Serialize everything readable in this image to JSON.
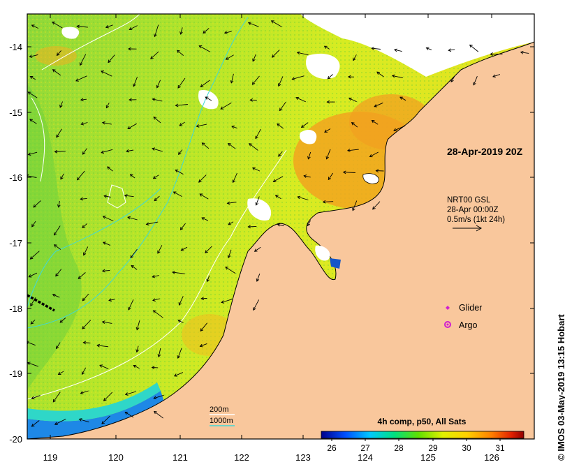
{
  "map": {
    "domain": {
      "lon": [
        118.6,
        126.7
      ],
      "lat": [
        -20.1,
        -13.6
      ]
    },
    "x_ticks": [
      "119",
      "120",
      "121",
      "122",
      "123",
      "124",
      "125",
      "126"
    ],
    "y_ticks": [
      "-14",
      "-15",
      "-16",
      "-17",
      "-18",
      "-19",
      "-20"
    ],
    "y_tick_values": [
      -14,
      -15,
      -16,
      -17,
      -18,
      -19,
      -20
    ],
    "x_tick_values": [
      119,
      120,
      121,
      122,
      123,
      124,
      125,
      126
    ],
    "colors": {
      "land": "#f9c79c",
      "sst_warm": "#f39a1e",
      "sst_mid": "#c8e824",
      "sst_cool": "#55d037",
      "contour_200m": "#ffffff",
      "contour_1000m": "#3fd8d8"
    }
  },
  "labels": {
    "timestamp": "28-Apr-2019 20Z",
    "current_product": "NRT00 GSL",
    "current_time": "28-Apr 00:00Z",
    "current_scale": "0.5m/s (1kt 24h)",
    "glider": "Glider",
    "argo": "Argo",
    "contour_200m": "200m",
    "contour_1000m": "1000m",
    "colorbar_title": "4h comp, p50, All Sats",
    "copyright": "© IMOS 03-May-2019 13:15 Hobart"
  },
  "colorbar": {
    "ticks": [
      "26",
      "27",
      "28",
      "29",
      "30",
      "31"
    ],
    "range": [
      25.6,
      31.6
    ],
    "stops": [
      "#00008b",
      "#0050ff",
      "#00c8ff",
      "#00e080",
      "#60e000",
      "#e0f000",
      "#ffd000",
      "#ff8000",
      "#e02000",
      "#900000"
    ]
  },
  "markers": {
    "glider_color": "#d020d0",
    "argo_color": "#d020d0"
  }
}
